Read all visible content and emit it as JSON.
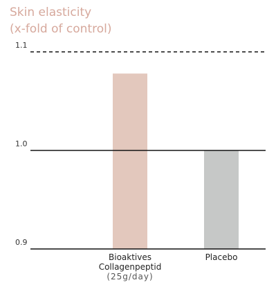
{
  "chart_data": {
    "type": "bar",
    "title_lines": [
      "Skin elasticity",
      "(x-fold of control)"
    ],
    "categories": [
      {
        "lines": [
          "Bioaktives",
          "Collagenpeptid"
        ],
        "sub": "(25g/day)"
      },
      {
        "lines": [
          "Placebo"
        ],
        "sub": ""
      }
    ],
    "values": [
      1.078,
      1.0
    ],
    "colors": [
      "#e3c8bd",
      "#c6c8c7"
    ],
    "ylim": [
      0.9,
      1.1
    ],
    "yticks": [
      0.9,
      1.0,
      1.1
    ],
    "ytick_labels": [
      "0.9",
      "1.0",
      "1.1"
    ],
    "reference_lines": [
      {
        "value": 1.1,
        "style": "dashed"
      },
      {
        "value": 1.0,
        "style": "solid"
      }
    ],
    "grid": false
  }
}
